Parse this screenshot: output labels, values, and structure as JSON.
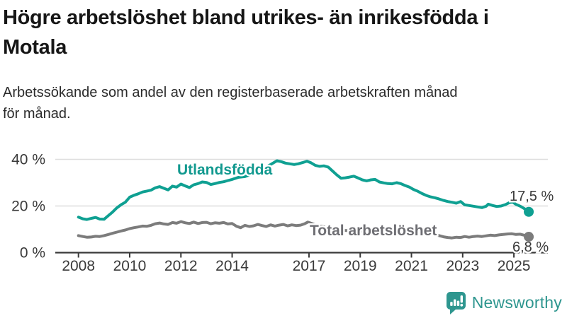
{
  "header": {
    "title": "Högre arbetslöshet bland utrikes- än inrikesfödda i Motala",
    "title_lines": [
      "Högre arbetslöshet bland utrikes- än inrikesfödda i",
      "Motala"
    ],
    "subtitle": "Arbetssökande som andel av den registerbaserade arbetskraften månad för månad.",
    "subtitle_lines": [
      "Arbetssökande som andel av den registerbaserade arbetskraften månad",
      "för månad."
    ]
  },
  "footer": {
    "brand": "Newsworthy",
    "brand_color": "#2e968f"
  },
  "colors": {
    "accent_teal": "#0fa092",
    "series_gray": "#7c7c7c",
    "grid": "#dedede",
    "axis": "#3a3a3a",
    "text": "#2b2b2b"
  },
  "chart_data": {
    "type": "line",
    "title": "Högre arbetslöshet bland utrikes- än inrikesfödda i Motala",
    "subtitle": "Arbetssökande som andel av den registerbaserade arbetskraften månad för månad.",
    "xlabel": "",
    "ylabel": "",
    "unit": "%",
    "ylim": [
      0,
      42
    ],
    "x_range": [
      2008.0,
      2025.58
    ],
    "grid": "horizontal",
    "legend_position": "inline-labels",
    "yticks": [
      {
        "value": 0,
        "label": "0 %"
      },
      {
        "value": 20,
        "label": "20 %"
      },
      {
        "value": 40,
        "label": "40 %"
      }
    ],
    "xticks": [
      {
        "value": 2008,
        "label": "2008"
      },
      {
        "value": 2010,
        "label": "2010"
      },
      {
        "value": 2012,
        "label": "2012"
      },
      {
        "value": 2014,
        "label": "2014"
      },
      {
        "value": 2017,
        "label": "2017"
      },
      {
        "value": 2019,
        "label": "2019"
      },
      {
        "value": 2021,
        "label": "2021"
      },
      {
        "value": 2023,
        "label": "2023"
      },
      {
        "value": 2025,
        "label": "2025"
      }
    ],
    "series": [
      {
        "name": "Utlandsfödda",
        "color": "#0fa092",
        "label_color": "#12998f",
        "end_label": "17,5 %",
        "last_value": 17.5,
        "points": [
          [
            2008.0,
            15.2
          ],
          [
            2008.17,
            14.5
          ],
          [
            2008.33,
            14.2
          ],
          [
            2008.5,
            14.7
          ],
          [
            2008.67,
            15.1
          ],
          [
            2008.83,
            14.4
          ],
          [
            2009.0,
            14.3
          ],
          [
            2009.17,
            15.9
          ],
          [
            2009.33,
            17.4
          ],
          [
            2009.5,
            19.2
          ],
          [
            2009.67,
            20.6
          ],
          [
            2009.83,
            21.6
          ],
          [
            2010.0,
            23.8
          ],
          [
            2010.17,
            24.6
          ],
          [
            2010.33,
            25.2
          ],
          [
            2010.5,
            26.0
          ],
          [
            2010.67,
            26.4
          ],
          [
            2010.83,
            26.8
          ],
          [
            2011.0,
            27.8
          ],
          [
            2011.17,
            28.3
          ],
          [
            2011.33,
            27.6
          ],
          [
            2011.5,
            26.9
          ],
          [
            2011.67,
            28.5
          ],
          [
            2011.83,
            28.1
          ],
          [
            2012.0,
            29.4
          ],
          [
            2012.17,
            28.6
          ],
          [
            2012.33,
            27.9
          ],
          [
            2012.5,
            29.1
          ],
          [
            2012.67,
            29.6
          ],
          [
            2012.83,
            30.3
          ],
          [
            2013.0,
            30.1
          ],
          [
            2013.17,
            29.2
          ],
          [
            2013.33,
            29.6
          ],
          [
            2013.5,
            30.1
          ],
          [
            2013.67,
            30.4
          ],
          [
            2013.83,
            30.9
          ],
          [
            2014.0,
            31.4
          ],
          [
            2014.25,
            32.3
          ],
          [
            2014.5,
            32.6
          ],
          [
            2014.75,
            33.6
          ],
          [
            2015.0,
            34.8
          ],
          [
            2015.25,
            36.2
          ],
          [
            2015.5,
            37.8
          ],
          [
            2015.75,
            39.4
          ],
          [
            2015.92,
            39.0
          ],
          [
            2016.08,
            38.4
          ],
          [
            2016.25,
            38.1
          ],
          [
            2016.42,
            37.8
          ],
          [
            2016.58,
            38.1
          ],
          [
            2016.75,
            38.6
          ],
          [
            2016.92,
            39.2
          ],
          [
            2017.08,
            38.5
          ],
          [
            2017.25,
            37.4
          ],
          [
            2017.42,
            37.0
          ],
          [
            2017.58,
            37.2
          ],
          [
            2017.75,
            36.7
          ],
          [
            2017.92,
            35.0
          ],
          [
            2018.08,
            33.4
          ],
          [
            2018.25,
            31.9
          ],
          [
            2018.42,
            32.1
          ],
          [
            2018.58,
            32.4
          ],
          [
            2018.75,
            32.8
          ],
          [
            2018.92,
            32.0
          ],
          [
            2019.08,
            31.2
          ],
          [
            2019.25,
            30.8
          ],
          [
            2019.42,
            31.2
          ],
          [
            2019.58,
            31.4
          ],
          [
            2019.75,
            30.3
          ],
          [
            2019.92,
            29.9
          ],
          [
            2020.08,
            29.6
          ],
          [
            2020.25,
            29.5
          ],
          [
            2020.42,
            30.0
          ],
          [
            2020.58,
            29.6
          ],
          [
            2020.75,
            28.8
          ],
          [
            2020.92,
            28.1
          ],
          [
            2021.08,
            27.1
          ],
          [
            2021.25,
            26.3
          ],
          [
            2021.42,
            25.3
          ],
          [
            2021.58,
            24.5
          ],
          [
            2021.75,
            23.9
          ],
          [
            2021.92,
            23.5
          ],
          [
            2022.08,
            23.0
          ],
          [
            2022.25,
            22.4
          ],
          [
            2022.42,
            21.9
          ],
          [
            2022.58,
            21.6
          ],
          [
            2022.75,
            21.2
          ],
          [
            2022.92,
            21.9
          ],
          [
            2023.08,
            20.5
          ],
          [
            2023.25,
            20.2
          ],
          [
            2023.42,
            19.9
          ],
          [
            2023.58,
            19.6
          ],
          [
            2023.75,
            19.3
          ],
          [
            2023.92,
            19.9
          ],
          [
            2024.0,
            20.8
          ],
          [
            2024.17,
            20.2
          ],
          [
            2024.33,
            19.8
          ],
          [
            2024.5,
            20.0
          ],
          [
            2024.67,
            20.6
          ],
          [
            2024.83,
            21.5
          ],
          [
            2024.95,
            21.7
          ],
          [
            2025.08,
            20.7
          ],
          [
            2025.25,
            19.9
          ],
          [
            2025.42,
            18.8
          ],
          [
            2025.58,
            17.5
          ]
        ]
      },
      {
        "name": "Total arbetslöshet",
        "color": "#7c7c7c",
        "label_color": "#6e6e73",
        "end_label": "6,8 %",
        "last_value": 6.8,
        "points": [
          [
            2008.0,
            7.3
          ],
          [
            2008.17,
            6.9
          ],
          [
            2008.33,
            6.6
          ],
          [
            2008.5,
            6.7
          ],
          [
            2008.67,
            7.0
          ],
          [
            2008.83,
            6.9
          ],
          [
            2009.0,
            7.3
          ],
          [
            2009.17,
            7.8
          ],
          [
            2009.33,
            8.3
          ],
          [
            2009.5,
            8.8
          ],
          [
            2009.67,
            9.3
          ],
          [
            2009.83,
            9.7
          ],
          [
            2010.0,
            10.3
          ],
          [
            2010.17,
            10.7
          ],
          [
            2010.33,
            11.0
          ],
          [
            2010.5,
            11.4
          ],
          [
            2010.67,
            11.3
          ],
          [
            2010.83,
            11.7
          ],
          [
            2011.0,
            12.4
          ],
          [
            2011.17,
            12.7
          ],
          [
            2011.33,
            12.3
          ],
          [
            2011.5,
            12.1
          ],
          [
            2011.67,
            12.9
          ],
          [
            2011.83,
            12.6
          ],
          [
            2012.0,
            13.3
          ],
          [
            2012.17,
            12.8
          ],
          [
            2012.33,
            12.5
          ],
          [
            2012.5,
            13.1
          ],
          [
            2012.67,
            12.5
          ],
          [
            2012.83,
            12.9
          ],
          [
            2013.0,
            13.0
          ],
          [
            2013.17,
            12.4
          ],
          [
            2013.33,
            12.8
          ],
          [
            2013.5,
            12.6
          ],
          [
            2013.67,
            12.9
          ],
          [
            2013.83,
            12.3
          ],
          [
            2014.0,
            12.5
          ],
          [
            2014.17,
            11.3
          ],
          [
            2014.33,
            10.7
          ],
          [
            2014.5,
            11.7
          ],
          [
            2014.67,
            11.2
          ],
          [
            2014.83,
            11.5
          ],
          [
            2015.0,
            12.1
          ],
          [
            2015.17,
            11.6
          ],
          [
            2015.33,
            11.2
          ],
          [
            2015.5,
            11.9
          ],
          [
            2015.67,
            11.4
          ],
          [
            2015.83,
            11.8
          ],
          [
            2016.0,
            12.1
          ],
          [
            2016.17,
            11.5
          ],
          [
            2016.33,
            11.9
          ],
          [
            2016.5,
            11.6
          ],
          [
            2016.67,
            11.8
          ],
          [
            2016.83,
            12.4
          ],
          [
            2016.95,
            13.1
          ],
          [
            2017.08,
            12.6
          ],
          [
            2017.25,
            11.9
          ],
          [
            2017.42,
            11.4
          ],
          [
            2017.58,
            11.1
          ],
          [
            2017.75,
            10.8
          ],
          [
            2017.92,
            10.6
          ],
          [
            2018.08,
            10.1
          ],
          [
            2018.25,
            9.7
          ],
          [
            2018.42,
            9.5
          ],
          [
            2018.58,
            9.4
          ],
          [
            2018.75,
            9.3
          ],
          [
            2018.92,
            9.4
          ],
          [
            2019.08,
            9.2
          ],
          [
            2019.25,
            9.0
          ],
          [
            2019.42,
            9.1
          ],
          [
            2019.58,
            9.0
          ],
          [
            2019.75,
            8.9
          ],
          [
            2019.92,
            9.1
          ],
          [
            2020.08,
            9.4
          ],
          [
            2020.25,
            10.2
          ],
          [
            2020.42,
            10.6
          ],
          [
            2020.58,
            10.4
          ],
          [
            2020.75,
            10.1
          ],
          [
            2020.92,
            9.9
          ],
          [
            2021.08,
            9.6
          ],
          [
            2021.25,
            9.3
          ],
          [
            2021.42,
            8.9
          ],
          [
            2021.58,
            8.5
          ],
          [
            2021.75,
            8.2
          ],
          [
            2021.92,
            7.8
          ],
          [
            2022.08,
            7.3
          ],
          [
            2022.25,
            6.8
          ],
          [
            2022.42,
            6.5
          ],
          [
            2022.58,
            6.3
          ],
          [
            2022.75,
            6.6
          ],
          [
            2022.92,
            6.5
          ],
          [
            2023.08,
            6.9
          ],
          [
            2023.25,
            6.6
          ],
          [
            2023.42,
            6.9
          ],
          [
            2023.58,
            7.1
          ],
          [
            2023.75,
            6.9
          ],
          [
            2023.92,
            7.2
          ],
          [
            2024.08,
            7.5
          ],
          [
            2024.25,
            7.3
          ],
          [
            2024.42,
            7.6
          ],
          [
            2024.58,
            7.8
          ],
          [
            2024.75,
            8.0
          ],
          [
            2024.92,
            8.1
          ],
          [
            2025.08,
            7.8
          ],
          [
            2025.25,
            7.9
          ],
          [
            2025.42,
            7.4
          ],
          [
            2025.58,
            6.8
          ]
        ]
      }
    ]
  }
}
